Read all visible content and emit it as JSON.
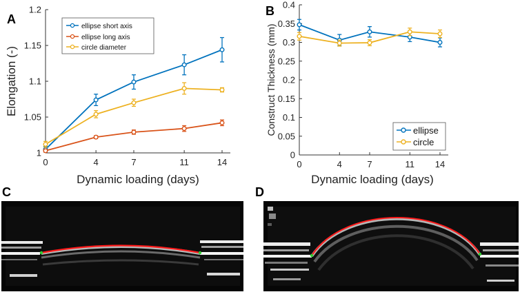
{
  "panels": {
    "A": "A",
    "B": "B",
    "C": "C",
    "D": "D"
  },
  "colors": {
    "blue": "#0072BD",
    "orange": "#D95319",
    "yellow": "#EDB120",
    "red_trace": "#ff1a1a",
    "green_marker": "#33cc33"
  },
  "chart_data": [
    {
      "type": "line",
      "panel": "A",
      "title": "",
      "xlabel": "Dynamic loading (days)",
      "ylabel": "Elongation (-)",
      "x": [
        0,
        4,
        7,
        11,
        14
      ],
      "xlim": [
        0,
        14
      ],
      "ylim": [
        1,
        1.2
      ],
      "xticks": [
        "0",
        "4",
        "7",
        "11",
        "14"
      ],
      "yticks": [
        "1",
        "1.05",
        "1.1",
        "1.15",
        "1.2"
      ],
      "ytick_values": [
        1,
        1.05,
        1.1,
        1.15,
        1.2
      ],
      "legend_position": "top-left",
      "series": [
        {
          "name": "ellipse short axis",
          "color": "#0072BD",
          "values": [
            1.005,
            1.074,
            1.099,
            1.123,
            1.144
          ],
          "errors": [
            0.004,
            0.008,
            0.01,
            0.014,
            0.017
          ]
        },
        {
          "name": "ellipse long axis",
          "color": "#D95319",
          "values": [
            1.003,
            1.022,
            1.029,
            1.034,
            1.042
          ],
          "errors": [
            0.002,
            0.002,
            0.003,
            0.004,
            0.004
          ]
        },
        {
          "name": "circle diameter",
          "color": "#EDB120",
          "values": [
            1.012,
            1.054,
            1.07,
            1.09,
            1.088
          ],
          "errors": [
            0.004,
            0.005,
            0.005,
            0.008,
            0.003
          ]
        }
      ]
    },
    {
      "type": "line",
      "panel": "B",
      "title": "",
      "xlabel": "Dynamic loading (days)",
      "ylabel": "Construct Thickness (mm)",
      "x": [
        0,
        4,
        7,
        11,
        14
      ],
      "xlim": [
        0,
        14
      ],
      "ylim": [
        0,
        0.4
      ],
      "xticks": [
        "0",
        "4",
        "7",
        "11",
        "14"
      ],
      "yticks": [
        "0",
        "0.05",
        "0.1",
        "0.15",
        "0.2",
        "0.25",
        "0.3",
        "0.35",
        "0.4"
      ],
      "ytick_values": [
        0,
        0.05,
        0.1,
        0.15,
        0.2,
        0.25,
        0.3,
        0.35,
        0.4
      ],
      "legend_position": "bottom-right",
      "series": [
        {
          "name": "ellipse",
          "color": "#0072BD",
          "values": [
            0.347,
            0.306,
            0.328,
            0.314,
            0.3
          ],
          "errors": [
            0.014,
            0.015,
            0.014,
            0.012,
            0.012
          ]
        },
        {
          "name": "circle",
          "color": "#EDB120",
          "values": [
            0.316,
            0.298,
            0.299,
            0.328,
            0.323
          ],
          "errors": [
            0.01,
            0.008,
            0.008,
            0.01,
            0.01
          ]
        }
      ]
    }
  ]
}
